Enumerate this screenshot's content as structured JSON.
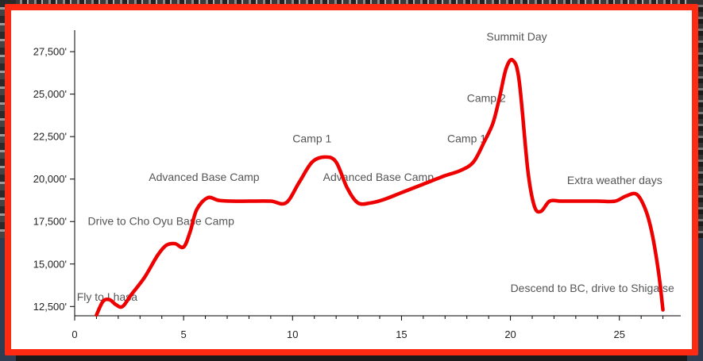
{
  "chart_data": {
    "type": "line",
    "line_color": "#ee0000",
    "frame_color": "#ff2a12",
    "x_ticks": [
      "0",
      "5",
      "10",
      "15",
      "20",
      "25"
    ],
    "x_tick_values": [
      0,
      5,
      10,
      15,
      20,
      25
    ],
    "y_ticks": [
      "12,500'",
      "15,000'",
      "17,500'",
      "20,000'",
      "22,500'",
      "25,000'",
      "27,500'"
    ],
    "y_tick_values": [
      12500,
      15000,
      17500,
      20000,
      22500,
      25000,
      27500
    ],
    "xlim": [
      0,
      28
    ],
    "ylim": [
      12000,
      29000
    ],
    "grid": false,
    "series": [
      {
        "x": [
          1,
          1.3,
          1.6,
          1.9,
          2.2,
          2.6,
          3.2,
          3.8,
          4.2,
          4.6,
          5.0,
          5.3,
          5.6,
          6.1,
          6.6,
          7.2,
          8.0,
          9.0,
          9.7,
          10.3,
          10.9,
          11.5,
          12.0,
          12.5,
          13.0,
          13.6,
          14.2,
          15.0,
          16.0,
          17.0,
          17.7,
          18.3,
          18.8,
          19.2,
          19.5,
          19.8,
          20.1,
          20.4,
          20.8,
          21.1,
          21.4,
          21.8,
          22.3,
          23.0,
          24.0,
          24.8,
          25.3,
          25.8,
          26.2,
          26.5,
          26.8,
          27.0
        ],
        "y": [
          12000,
          12800,
          12900,
          12600,
          12500,
          13200,
          14200,
          15500,
          16100,
          16200,
          16000,
          16900,
          18200,
          18900,
          18750,
          18700,
          18700,
          18700,
          18600,
          19800,
          21000,
          21300,
          21000,
          19500,
          18600,
          18600,
          18800,
          19200,
          19700,
          20200,
          20500,
          21000,
          22200,
          23300,
          24800,
          26500,
          27000,
          25800,
          20500,
          18400,
          18100,
          18700,
          18700,
          18700,
          18700,
          18700,
          19000,
          19100,
          18200,
          16800,
          14500,
          12300
        ]
      }
    ],
    "annotations": [
      {
        "text": "Fly to Lhasa",
        "x": 0.1,
        "y": 12850
      },
      {
        "text": "Drive to Cho Oyu Base Camp",
        "x": 0.6,
        "y": 17300
      },
      {
        "text": "Advanced Base Camp",
        "x": 3.4,
        "y": 19900
      },
      {
        "text": "Camp 1",
        "x": 10.0,
        "y": 22150
      },
      {
        "text": "Advanced Base Camp",
        "x": 11.4,
        "y": 19900
      },
      {
        "text": "Camp 1",
        "x": 17.1,
        "y": 22150
      },
      {
        "text": "Camp 2",
        "x": 18.0,
        "y": 24550
      },
      {
        "text": "Summit Day",
        "x": 18.9,
        "y": 28150
      },
      {
        "text": "Extra weather days",
        "x": 22.6,
        "y": 19700
      },
      {
        "text": "Descend to BC, drive to Shigatse",
        "x": 20.0,
        "y": 13350
      }
    ]
  }
}
